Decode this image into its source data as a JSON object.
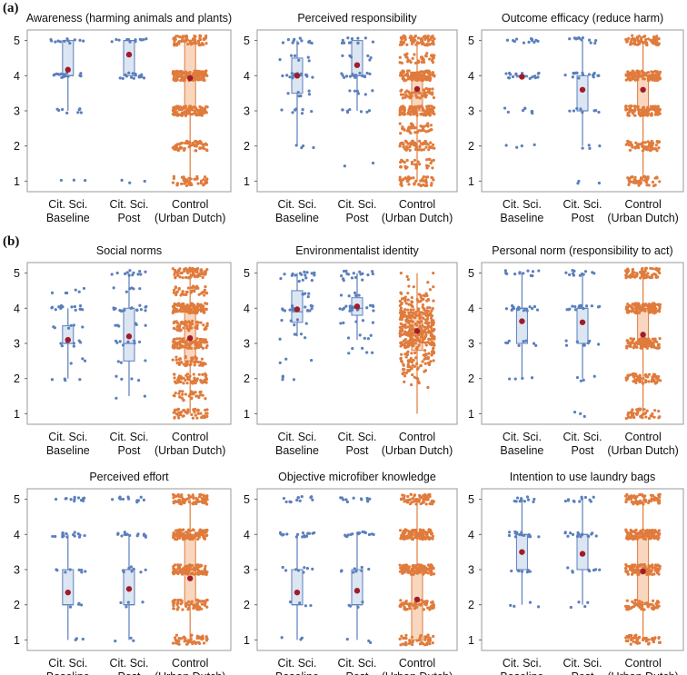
{
  "figure": {
    "section_labels": [
      "(a)",
      "(b)"
    ],
    "colors": {
      "citsci": "#5b7fbd",
      "citsci_box_fill": "#dce6f2",
      "control": "#e07b3c",
      "control_box_fill": "#f9d7bf",
      "mean_marker": "#a01c2b"
    },
    "group_labels": [
      [
        "Cit. Sci.",
        "Baseline"
      ],
      [
        "Cit. Sci.",
        "Post"
      ],
      [
        "Control",
        "(Urban Dutch)"
      ]
    ]
  },
  "chart_data": [
    {
      "type": "box-strip",
      "title": "Awareness (harming animals and plants)",
      "categories": [
        "Cit. Sci. Baseline",
        "Cit. Sci. Post",
        "Control (Urban Dutch)"
      ],
      "ylim": [
        0.7,
        5.3
      ],
      "yticks": [
        1,
        2,
        3,
        4,
        5
      ],
      "groups": [
        {
          "mean": 4.17,
          "q1": 4.0,
          "median": 4.0,
          "q3": 5.0,
          "whisker_low": 3.0,
          "whisker_high": 5.0,
          "levels": [
            1.0,
            3.0,
            4.0,
            5.0
          ]
        },
        {
          "mean": 4.6,
          "q1": 4.0,
          "median": 5.0,
          "q3": 5.0,
          "whisker_low": 4.0,
          "whisker_high": 5.0,
          "levels": [
            1.0,
            4.0,
            5.0
          ]
        },
        {
          "mean": 3.93,
          "q1": 3.0,
          "median": 4.0,
          "q3": 5.0,
          "whisker_low": 1.0,
          "whisker_high": 5.0,
          "levels": [
            1.0,
            2.0,
            3.0,
            4.0,
            5.0
          ]
        }
      ]
    },
    {
      "type": "box-strip",
      "title": "Perceived responsibility",
      "categories": [
        "Cit. Sci. Baseline",
        "Cit. Sci. Post",
        "Control (Urban Dutch)"
      ],
      "ylim": [
        0.7,
        5.3
      ],
      "yticks": [
        1,
        2,
        3,
        4,
        5
      ],
      "groups": [
        {
          "mean": 4.0,
          "q1": 3.5,
          "median": 4.0,
          "q3": 4.5,
          "whisker_low": 2.0,
          "whisker_high": 5.0,
          "levels": [
            2.0,
            3.0,
            3.5,
            4.0,
            4.5,
            5.0
          ]
        },
        {
          "mean": 4.3,
          "q1": 4.0,
          "median": 4.0,
          "q3": 5.0,
          "whisker_low": 3.0,
          "whisker_high": 5.0,
          "levels": [
            1.5,
            3.0,
            3.5,
            4.0,
            4.5,
            5.0
          ]
        },
        {
          "mean": 3.62,
          "q1": 3.0,
          "median": 3.5,
          "q3": 4.0,
          "whisker_low": 1.0,
          "whisker_high": 5.0,
          "levels": [
            1.0,
            1.5,
            2.0,
            2.5,
            3.0,
            3.5,
            4.0,
            4.5,
            5.0
          ]
        }
      ]
    },
    {
      "type": "box-strip",
      "title": "Outcome efficacy (reduce harm)",
      "categories": [
        "Cit. Sci. Baseline",
        "Cit. Sci. Post",
        "Control (Urban Dutch)"
      ],
      "ylim": [
        0.7,
        5.3
      ],
      "yticks": [
        1,
        2,
        3,
        4,
        5
      ],
      "groups": [
        {
          "mean": 3.97,
          "q1": 4.0,
          "median": 4.0,
          "q3": 4.0,
          "whisker_low": 4.0,
          "whisker_high": 4.0,
          "levels": [
            2.0,
            3.0,
            4.0,
            5.0
          ]
        },
        {
          "mean": 3.6,
          "q1": 3.0,
          "median": 3.0,
          "q3": 4.0,
          "whisker_low": 2.0,
          "whisker_high": 5.0,
          "levels": [
            1.0,
            2.0,
            3.0,
            4.0,
            5.0
          ]
        },
        {
          "mean": 3.6,
          "q1": 3.0,
          "median": 4.0,
          "q3": 4.0,
          "whisker_low": 1.0,
          "whisker_high": 5.0,
          "levels": [
            1.0,
            2.0,
            3.0,
            4.0,
            5.0
          ]
        }
      ]
    },
    {
      "type": "box-strip",
      "title": "Social norms",
      "categories": [
        "Cit. Sci. Baseline",
        "Cit. Sci. Post",
        "Control (Urban Dutch)"
      ],
      "ylim": [
        0.7,
        5.3
      ],
      "yticks": [
        1,
        2,
        3,
        4,
        5
      ],
      "groups": [
        {
          "mean": 3.1,
          "q1": 3.0,
          "median": 3.0,
          "q3": 3.5,
          "whisker_low": 2.0,
          "whisker_high": 4.0,
          "levels": [
            2.0,
            2.5,
            3.0,
            3.5,
            4.0,
            4.5
          ]
        },
        {
          "mean": 3.2,
          "q1": 2.5,
          "median": 3.0,
          "q3": 4.0,
          "whisker_low": 1.5,
          "whisker_high": 5.0,
          "levels": [
            1.5,
            2.0,
            2.5,
            3.0,
            3.5,
            4.0,
            4.5,
            5.0
          ]
        },
        {
          "mean": 3.15,
          "q1": 2.5,
          "median": 3.0,
          "q3": 4.0,
          "whisker_low": 1.0,
          "whisker_high": 5.0,
          "levels": [
            1.0,
            1.5,
            2.0,
            2.5,
            3.0,
            3.5,
            4.0,
            4.5,
            5.0
          ]
        }
      ]
    },
    {
      "type": "box-strip",
      "title": "Environmentalist identity",
      "categories": [
        "Cit. Sci. Baseline",
        "Cit. Sci. Post",
        "Control (Urban Dutch)"
      ],
      "ylim": [
        0.7,
        5.3
      ],
      "yticks": [
        1,
        2,
        3,
        4,
        5
      ],
      "groups": [
        {
          "mean": 3.97,
          "q1": 3.6,
          "median": 3.9,
          "q3": 4.5,
          "whisker_low": 3.2,
          "whisker_high": 5.0,
          "levels": [
            2.0,
            2.5,
            3.2,
            3.6,
            4.0,
            4.4,
            4.8,
            5.0
          ]
        },
        {
          "mean": 4.05,
          "q1": 3.8,
          "median": 4.0,
          "q3": 4.3,
          "whisker_low": 3.1,
          "whisker_high": 5.0,
          "levels": [
            2.8,
            3.2,
            3.6,
            4.0,
            4.4,
            4.8,
            5.0
          ]
        },
        {
          "mean": 3.35,
          "q1": 2.8,
          "median": 3.3,
          "q3": 3.9,
          "whisker_low": 1.0,
          "whisker_high": 5.0,
          "levels": [
            1.0,
            5.0
          ]
        }
      ]
    },
    {
      "type": "box-strip",
      "title": "Personal norm (responsibility to act)",
      "categories": [
        "Cit. Sci. Baseline",
        "Cit. Sci. Post",
        "Control (Urban Dutch)"
      ],
      "ylim": [
        0.7,
        5.3
      ],
      "yticks": [
        1,
        2,
        3,
        4,
        5
      ],
      "groups": [
        {
          "mean": 3.63,
          "q1": 3.0,
          "median": 4.0,
          "q3": 4.0,
          "whisker_low": 2.0,
          "whisker_high": 5.0,
          "levels": [
            2.0,
            3.0,
            4.0,
            5.0
          ]
        },
        {
          "mean": 3.6,
          "q1": 3.0,
          "median": 4.0,
          "q3": 4.0,
          "whisker_low": 2.0,
          "whisker_high": 5.0,
          "levels": [
            1.0,
            2.0,
            3.0,
            4.0,
            5.0
          ]
        },
        {
          "mean": 3.25,
          "q1": 3.0,
          "median": 3.0,
          "q3": 4.0,
          "whisker_low": 1.0,
          "whisker_high": 5.0,
          "levels": [
            1.0,
            2.0,
            3.0,
            4.0,
            5.0
          ]
        }
      ]
    },
    {
      "type": "box-strip",
      "title": "Perceived effort",
      "categories": [
        "Cit. Sci. Baseline",
        "Cit. Sci. Post",
        "Control (Urban Dutch)"
      ],
      "ylim": [
        0.7,
        5.3
      ],
      "yticks": [
        1,
        2,
        3,
        4,
        5
      ],
      "groups": [
        {
          "mean": 2.35,
          "q1": 2.0,
          "median": 2.0,
          "q3": 3.0,
          "whisker_low": 1.0,
          "whisker_high": 4.0,
          "levels": [
            1.0,
            2.0,
            3.0,
            4.0,
            5.0
          ]
        },
        {
          "mean": 2.45,
          "q1": 2.0,
          "median": 2.0,
          "q3": 3.0,
          "whisker_low": 1.0,
          "whisker_high": 4.0,
          "levels": [
            1.0,
            2.0,
            3.0,
            4.0,
            5.0
          ]
        },
        {
          "mean": 2.75,
          "q1": 2.0,
          "median": 3.0,
          "q3": 4.0,
          "whisker_low": 1.0,
          "whisker_high": 5.0,
          "levels": [
            1.0,
            2.0,
            3.0,
            4.0,
            5.0
          ]
        }
      ]
    },
    {
      "type": "box-strip",
      "title": "Objective microfiber knowledge",
      "categories": [
        "Cit. Sci. Baseline",
        "Cit. Sci. Post",
        "Control (Urban Dutch)"
      ],
      "ylim": [
        0.7,
        5.3
      ],
      "yticks": [
        1,
        2,
        3,
        4,
        5
      ],
      "groups": [
        {
          "mean": 2.35,
          "q1": 2.0,
          "median": 2.0,
          "q3": 3.0,
          "whisker_low": 1.0,
          "whisker_high": 4.0,
          "levels": [
            1.0,
            2.0,
            3.0,
            4.0,
            5.0
          ]
        },
        {
          "mean": 2.4,
          "q1": 2.0,
          "median": 2.0,
          "q3": 3.0,
          "whisker_low": 1.0,
          "whisker_high": 4.0,
          "levels": [
            1.0,
            2.0,
            3.0,
            4.0,
            5.0
          ]
        },
        {
          "mean": 2.15,
          "q1": 1.0,
          "median": 2.0,
          "q3": 3.0,
          "whisker_low": 1.0,
          "whisker_high": 5.0,
          "levels": [
            1.0,
            2.0,
            3.0,
            4.0,
            5.0
          ]
        }
      ]
    },
    {
      "type": "box-strip",
      "title": "Intention to use laundry bags",
      "categories": [
        "Cit. Sci. Baseline",
        "Cit. Sci. Post",
        "Control (Urban Dutch)"
      ],
      "ylim": [
        0.7,
        5.3
      ],
      "yticks": [
        1,
        2,
        3,
        4,
        5
      ],
      "groups": [
        {
          "mean": 3.5,
          "q1": 3.0,
          "median": 4.0,
          "q3": 4.0,
          "whisker_low": 2.0,
          "whisker_high": 5.0,
          "levels": [
            2.0,
            3.0,
            4.0,
            5.0
          ]
        },
        {
          "mean": 3.45,
          "q1": 3.0,
          "median": 4.0,
          "q3": 4.0,
          "whisker_low": 2.0,
          "whisker_high": 5.0,
          "levels": [
            2.0,
            3.0,
            4.0,
            5.0
          ]
        },
        {
          "mean": 2.95,
          "q1": 2.0,
          "median": 3.0,
          "q3": 4.0,
          "whisker_low": 1.0,
          "whisker_high": 5.0,
          "levels": [
            1.0,
            2.0,
            3.0,
            4.0,
            5.0
          ]
        }
      ]
    }
  ]
}
